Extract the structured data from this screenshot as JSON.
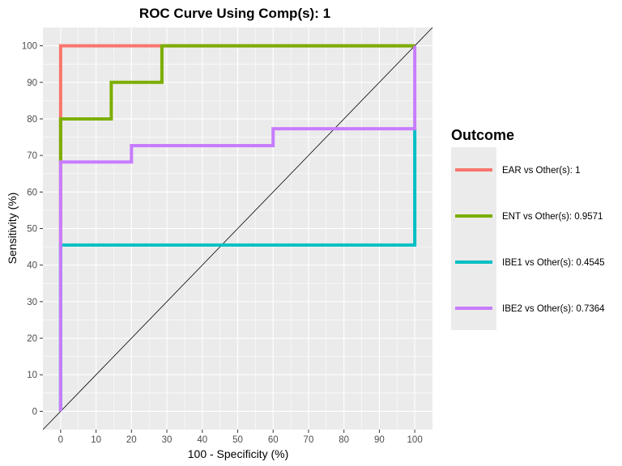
{
  "chart_data": {
    "type": "line",
    "title": "ROC Curve Using Comp(s): 1",
    "xlabel": "100 - Specificity (%)",
    "ylabel": "Sensitivity (%)",
    "xlim": [
      -5,
      105
    ],
    "ylim": [
      -5,
      105
    ],
    "xticks": [
      0,
      10,
      20,
      30,
      40,
      50,
      60,
      70,
      80,
      90,
      100
    ],
    "yticks": [
      0,
      10,
      20,
      30,
      40,
      50,
      60,
      70,
      80,
      90,
      100
    ],
    "grid": true,
    "panel_background": "#ebebeb",
    "reference_line": {
      "x": [
        -5,
        105
      ],
      "y": [
        -5,
        105
      ],
      "color": "#000000"
    },
    "legend": {
      "title": "Outcome",
      "position": "right"
    },
    "series": [
      {
        "name": "EAR vs Other(s): 1",
        "color": "#f8766d",
        "x": [
          0,
          0,
          0,
          100,
          100
        ],
        "y": [
          0,
          80,
          100,
          100,
          100
        ]
      },
      {
        "name": "ENT vs Other(s): 0.9571",
        "color": "#7cae00",
        "x": [
          0,
          0,
          14.3,
          14.3,
          28.6,
          28.6,
          100
        ],
        "y": [
          68,
          80,
          80,
          90,
          90,
          100,
          100
        ]
      },
      {
        "name": "IBE1 vs Other(s): 0.4545",
        "color": "#00bfc4",
        "x": [
          0,
          0,
          100,
          100
        ],
        "y": [
          0,
          45.5,
          45.5,
          77.3
        ]
      },
      {
        "name": "IBE2 vs Other(s): 0.7364",
        "color": "#c77cff",
        "x": [
          0,
          0,
          20,
          20,
          60,
          60,
          100,
          100
        ],
        "y": [
          0,
          68.2,
          68.2,
          72.7,
          72.7,
          77.3,
          77.3,
          100
        ]
      }
    ]
  }
}
